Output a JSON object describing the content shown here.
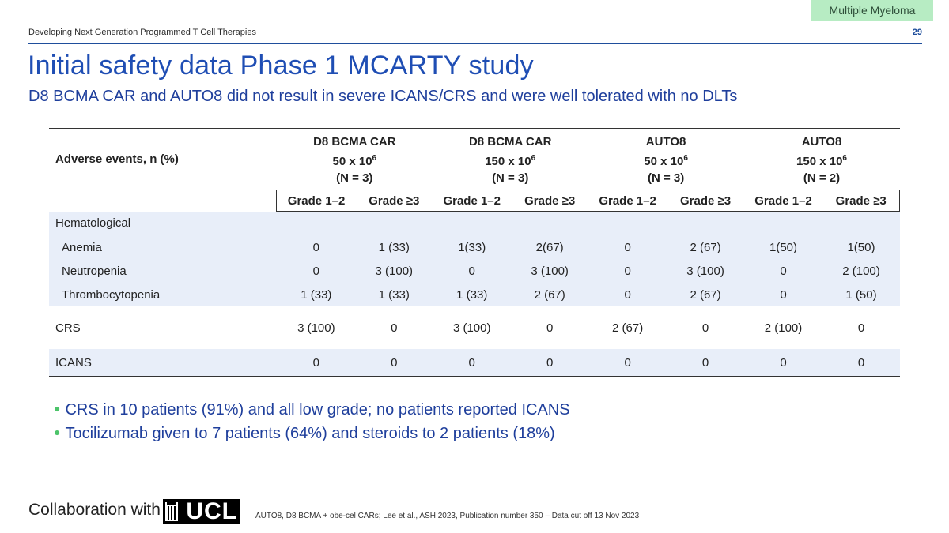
{
  "tag": "Multiple Myeloma",
  "header": {
    "subtitle": "Developing Next Generation Programmed T Cell Therapies",
    "page_number": "29"
  },
  "title": "Initial safety data Phase 1 MCARTY study",
  "subheading": "D8 BCMA CAR and AUTO8 did not result in severe ICANS/CRS and were well tolerated with no DLTs",
  "table": {
    "row_header": "Adverse events, n (%)",
    "groups": [
      {
        "name": "D8 BCMA CAR",
        "dose": "50 x 10",
        "exp": "6",
        "n": "(N = 3)"
      },
      {
        "name": "D8 BCMA CAR",
        "dose": "150 x 10",
        "exp": "6",
        "n": "(N = 3)"
      },
      {
        "name": "AUTO8",
        "dose": "50 x 10",
        "exp": "6",
        "n": "(N = 3)"
      },
      {
        "name": "AUTO8",
        "dose": "150 x 10",
        "exp": "6",
        "n": "(N = 2)"
      }
    ],
    "grades": [
      "Grade 1–2",
      "Grade ≥3",
      "Grade 1–2",
      "Grade ≥3",
      "Grade 1–2",
      "Grade ≥3",
      "Grade 1–2",
      "Grade ≥3"
    ],
    "category": "Hematological",
    "rows": [
      {
        "label": "Anemia",
        "values": [
          "0",
          "1 (33)",
          "1(33)",
          "2(67)",
          "0",
          "2 (67)",
          "1(50)",
          "1(50)"
        ]
      },
      {
        "label": "Neutropenia",
        "values": [
          "0",
          "3 (100)",
          "0",
          "3 (100)",
          "0",
          "3 (100)",
          "0",
          "2 (100)"
        ]
      },
      {
        "label": "Thrombocytopenia",
        "values": [
          "1 (33)",
          "1 (33)",
          "1 (33)",
          "2 (67)",
          "0",
          "2 (67)",
          "0",
          "1 (50)"
        ]
      },
      {
        "label": "CRS",
        "values": [
          "3 (100)",
          "0",
          "3 (100)",
          "0",
          "2 (67)",
          "0",
          "2 (100)",
          "0"
        ]
      },
      {
        "label": "ICANS",
        "values": [
          "0",
          "0",
          "0",
          "0",
          "0",
          "0",
          "0",
          "0"
        ]
      }
    ]
  },
  "bullets": [
    "CRS in 10 patients (91%) and all low grade; no patients reported ICANS",
    "Tocilizumab given to 7 patients (64%) and steroids to 2 patients (18%)"
  ],
  "footer": {
    "collaboration": "Collaboration with",
    "logo_text": "UCL",
    "reference": "AUTO8, D8 BCMA + obe-cel CARs; Lee et al., ASH 2023, Publication number 350 – Data cut off 13 Nov 2023"
  }
}
